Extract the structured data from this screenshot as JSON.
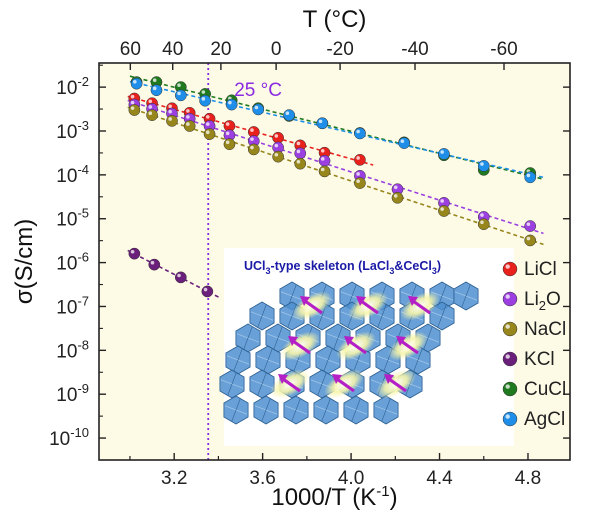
{
  "chart_data": {
    "type": "scatter",
    "log_y": true,
    "background_color": "#fdfbe6",
    "x": {
      "label": "1000/T (K",
      "label_sup": "-1",
      "label_end": ")",
      "lim": [
        2.86,
        4.99
      ],
      "ticks": [
        3.2,
        3.6,
        4.0,
        4.4,
        4.8
      ],
      "tick_labels": [
        "3.2",
        "3.6",
        "4.0",
        "4.4",
        "4.8"
      ]
    },
    "x_top": {
      "label": "T (°C)",
      "ticks_celsius": [
        60,
        40,
        20,
        0,
        -20,
        -40,
        -60
      ],
      "tick_labels": [
        "60",
        "40",
        "20",
        "0",
        "-20",
        "-40",
        "-60"
      ]
    },
    "y": {
      "label": "σ(S/cm)",
      "lim_exp": [
        -10.5,
        -1.45
      ],
      "ticks_exp": [
        -10,
        -9,
        -8,
        -7,
        -6,
        -5,
        -4,
        -3,
        -2
      ],
      "tick_labels": [
        {
          "base": "10",
          "exp": "-10"
        },
        {
          "base": "10",
          "exp": "-9"
        },
        {
          "base": "10",
          "exp": "-8"
        },
        {
          "base": "10",
          "exp": "-7"
        },
        {
          "base": "10",
          "exp": "-6"
        },
        {
          "base": "10",
          "exp": "-5"
        },
        {
          "base": "10",
          "exp": "-4"
        },
        {
          "base": "10",
          "exp": "-3"
        },
        {
          "base": "10",
          "exp": "-2"
        }
      ]
    },
    "reference_line": {
      "x": 3.354,
      "label": "25 °C",
      "color": "#8a2be2"
    },
    "series": [
      {
        "name": "LiCl",
        "name_html": [
          "Li",
          "Cl",
          ""
        ],
        "color": "#e8211d",
        "x": [
          3.02,
          3.1,
          3.19,
          3.27,
          3.36,
          3.45,
          3.56,
          3.67,
          3.77,
          3.88,
          4.04
        ],
        "y": [
          0.0055,
          0.0043,
          0.0033,
          0.0026,
          0.0019,
          0.0013,
          0.00095,
          0.0007,
          0.00047,
          0.00032,
          0.00022
        ]
      },
      {
        "name": "Li2O",
        "name_html": [
          "Li",
          "2",
          "O"
        ],
        "color": "#9b3fe0",
        "x": [
          3.02,
          3.1,
          3.19,
          3.27,
          3.36,
          3.45,
          3.56,
          3.67,
          3.77,
          3.88,
          4.04,
          4.21,
          4.42,
          4.6,
          4.81
        ],
        "y": [
          0.004,
          0.0032,
          0.0025,
          0.0019,
          0.0013,
          0.0008,
          0.00059,
          0.00042,
          0.00031,
          0.00021,
          9.5e-05,
          4.7e-05,
          2.3e-05,
          1.1e-05,
          6.8e-06
        ]
      },
      {
        "name": "NaCl",
        "name_html": [
          "Na",
          "Cl",
          ""
        ],
        "color": "#96861c",
        "x": [
          3.02,
          3.1,
          3.19,
          3.27,
          3.36,
          3.45,
          3.56,
          3.67,
          3.77,
          3.88,
          4.04,
          4.21,
          4.42,
          4.6,
          4.81
        ],
        "y": [
          0.003,
          0.0023,
          0.0017,
          0.0013,
          0.00085,
          0.0005,
          0.00038,
          0.00026,
          0.00018,
          0.00012,
          6.5e-05,
          3e-05,
          1.5e-05,
          7.5e-06,
          3.2e-06
        ]
      },
      {
        "name": "KCl",
        "name_html": [
          "K",
          "Cl",
          ""
        ],
        "color": "#6a1f7a",
        "x": [
          3.02,
          3.11,
          3.23,
          3.35
        ],
        "y": [
          1.6e-06,
          9e-07,
          4.6e-07,
          2.2e-07
        ]
      },
      {
        "name": "CuCl",
        "name_html": [
          "Cu",
          "Cl",
          ""
        ],
        "color": "#1f7a1f",
        "x": [
          3.03,
          3.12,
          3.23,
          3.34,
          3.46,
          3.58,
          3.72,
          3.87,
          4.04,
          4.24,
          4.42,
          4.6,
          4.81
        ],
        "y": [
          0.013,
          0.013,
          0.01,
          0.007,
          0.005,
          0.0033,
          0.0022,
          0.0015,
          0.0009,
          0.00055,
          0.00028,
          0.00013,
          0.00011
        ]
      },
      {
        "name": "AgCl",
        "name_html": [
          "Ag",
          "Cl",
          ""
        ],
        "color": "#1e8ee8",
        "x": [
          3.03,
          3.12,
          3.23,
          3.34,
          3.46,
          3.58,
          3.72,
          3.87,
          4.04,
          4.24,
          4.42,
          4.6,
          4.81
        ],
        "y": [
          0.012,
          0.0085,
          0.0065,
          0.0049,
          0.004,
          0.0031,
          0.0023,
          0.0015,
          0.00088,
          0.00053,
          0.0003,
          0.00016,
          8.8e-05
        ]
      }
    ],
    "inset": {
      "title_parts": [
        "UCl",
        "3",
        "-type skeleton (LaCl",
        "3",
        "&CeCl",
        "3",
        ")"
      ],
      "title_color": "#1a1aa6",
      "arrow_color": "#b51fc6",
      "polyhedra_color": "#4f8fd0"
    },
    "legend_position": "right"
  }
}
